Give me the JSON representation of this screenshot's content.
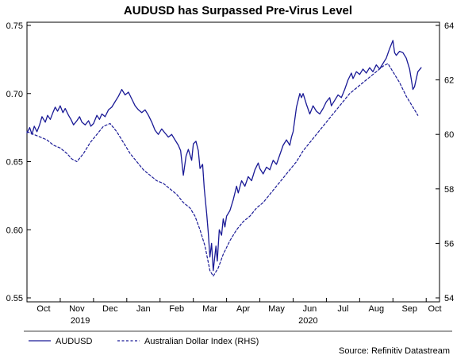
{
  "chart_data": {
    "type": "line",
    "title": "AUDUSD has Surpassed Pre-Virus Level",
    "source": "Source: Refinitiv Datastream",
    "line_color": "#1a1a96",
    "background_color": "#ffffff",
    "grid": false,
    "x_span": 12.4,
    "x_tick_labels": [
      "Oct",
      "Nov",
      "Dec",
      "Jan",
      "Feb",
      "Mar",
      "Apr",
      "May",
      "Jun",
      "Jul",
      "Aug",
      "Sep",
      "Oct"
    ],
    "year_labels": [
      {
        "text": "2019",
        "x": 1.6
      },
      {
        "text": "2020",
        "x": 8.45
      }
    ],
    "left_axis": {
      "min": 0.55,
      "max": 0.75,
      "ticks": [
        "0.75",
        "0.70",
        "0.65",
        "0.60",
        "0.55"
      ]
    },
    "right_axis": {
      "min": 54,
      "max": 64,
      "ticks": [
        "64",
        "62",
        "60",
        "58",
        "56",
        "54"
      ]
    },
    "legend": [
      {
        "label": "AUDUSD",
        "style": "solid"
      },
      {
        "label": "Australian Dollar Index (RHS)",
        "style": "dashed"
      }
    ],
    "series": [
      {
        "name": "AUDUSD",
        "axis": "left",
        "style": "solid",
        "x_unit": "months from Oct 2019",
        "points": [
          [
            0.0,
            0.671
          ],
          [
            0.08,
            0.675
          ],
          [
            0.15,
            0.67
          ],
          [
            0.22,
            0.676
          ],
          [
            0.3,
            0.672
          ],
          [
            0.38,
            0.677
          ],
          [
            0.45,
            0.683
          ],
          [
            0.55,
            0.679
          ],
          [
            0.62,
            0.684
          ],
          [
            0.7,
            0.681
          ],
          [
            0.78,
            0.686
          ],
          [
            0.85,
            0.69
          ],
          [
            0.92,
            0.687
          ],
          [
            1.0,
            0.691
          ],
          [
            1.08,
            0.686
          ],
          [
            1.15,
            0.689
          ],
          [
            1.25,
            0.684
          ],
          [
            1.32,
            0.681
          ],
          [
            1.4,
            0.677
          ],
          [
            1.5,
            0.68
          ],
          [
            1.58,
            0.683
          ],
          [
            1.65,
            0.679
          ],
          [
            1.75,
            0.677
          ],
          [
            1.85,
            0.68
          ],
          [
            1.92,
            0.676
          ],
          [
            2.0,
            0.678
          ],
          [
            2.1,
            0.684
          ],
          [
            2.18,
            0.681
          ],
          [
            2.25,
            0.685
          ],
          [
            2.35,
            0.683
          ],
          [
            2.45,
            0.688
          ],
          [
            2.55,
            0.69
          ],
          [
            2.65,
            0.694
          ],
          [
            2.75,
            0.698
          ],
          [
            2.85,
            0.703
          ],
          [
            2.95,
            0.699
          ],
          [
            3.05,
            0.701
          ],
          [
            3.15,
            0.696
          ],
          [
            3.25,
            0.691
          ],
          [
            3.35,
            0.688
          ],
          [
            3.45,
            0.686
          ],
          [
            3.55,
            0.688
          ],
          [
            3.65,
            0.684
          ],
          [
            3.75,
            0.679
          ],
          [
            3.85,
            0.673
          ],
          [
            3.95,
            0.67
          ],
          [
            4.05,
            0.674
          ],
          [
            4.15,
            0.671
          ],
          [
            4.25,
            0.668
          ],
          [
            4.35,
            0.67
          ],
          [
            4.45,
            0.666
          ],
          [
            4.55,
            0.662
          ],
          [
            4.62,
            0.658
          ],
          [
            4.7,
            0.64
          ],
          [
            4.78,
            0.654
          ],
          [
            4.85,
            0.659
          ],
          [
            4.95,
            0.651
          ],
          [
            5.0,
            0.663
          ],
          [
            5.08,
            0.665
          ],
          [
            5.15,
            0.658
          ],
          [
            5.2,
            0.645
          ],
          [
            5.28,
            0.648
          ],
          [
            5.33,
            0.63
          ],
          [
            5.4,
            0.612
          ],
          [
            5.45,
            0.598
          ],
          [
            5.5,
            0.58
          ],
          [
            5.55,
            0.59
          ],
          [
            5.6,
            0.57
          ],
          [
            5.68,
            0.588
          ],
          [
            5.72,
            0.577
          ],
          [
            5.78,
            0.6
          ],
          [
            5.85,
            0.596
          ],
          [
            5.9,
            0.608
          ],
          [
            5.95,
            0.602
          ],
          [
            6.0,
            0.61
          ],
          [
            6.1,
            0.614
          ],
          [
            6.2,
            0.622
          ],
          [
            6.3,
            0.632
          ],
          [
            6.35,
            0.627
          ],
          [
            6.45,
            0.636
          ],
          [
            6.55,
            0.632
          ],
          [
            6.65,
            0.639
          ],
          [
            6.75,
            0.636
          ],
          [
            6.85,
            0.644
          ],
          [
            6.95,
            0.649
          ],
          [
            7.0,
            0.645
          ],
          [
            7.1,
            0.641
          ],
          [
            7.2,
            0.646
          ],
          [
            7.3,
            0.644
          ],
          [
            7.4,
            0.651
          ],
          [
            7.5,
            0.648
          ],
          [
            7.6,
            0.655
          ],
          [
            7.7,
            0.662
          ],
          [
            7.8,
            0.666
          ],
          [
            7.9,
            0.662
          ],
          [
            7.95,
            0.668
          ],
          [
            8.0,
            0.672
          ],
          [
            8.1,
            0.69
          ],
          [
            8.2,
            0.7
          ],
          [
            8.25,
            0.697
          ],
          [
            8.3,
            0.7
          ],
          [
            8.4,
            0.692
          ],
          [
            8.5,
            0.685
          ],
          [
            8.6,
            0.691
          ],
          [
            8.7,
            0.687
          ],
          [
            8.8,
            0.685
          ],
          [
            8.9,
            0.689
          ],
          [
            9.0,
            0.694
          ],
          [
            9.1,
            0.697
          ],
          [
            9.15,
            0.691
          ],
          [
            9.25,
            0.695
          ],
          [
            9.35,
            0.699
          ],
          [
            9.45,
            0.697
          ],
          [
            9.55,
            0.703
          ],
          [
            9.65,
            0.71
          ],
          [
            9.75,
            0.715
          ],
          [
            9.8,
            0.711
          ],
          [
            9.9,
            0.716
          ],
          [
            10.0,
            0.714
          ],
          [
            10.1,
            0.718
          ],
          [
            10.2,
            0.715
          ],
          [
            10.3,
            0.719
          ],
          [
            10.4,
            0.716
          ],
          [
            10.5,
            0.721
          ],
          [
            10.6,
            0.718
          ],
          [
            10.7,
            0.722
          ],
          [
            10.8,
            0.726
          ],
          [
            10.9,
            0.733
          ],
          [
            11.0,
            0.739
          ],
          [
            11.05,
            0.73
          ],
          [
            11.1,
            0.728
          ],
          [
            11.2,
            0.731
          ],
          [
            11.3,
            0.73
          ],
          [
            11.4,
            0.726
          ],
          [
            11.5,
            0.718
          ],
          [
            11.6,
            0.703
          ],
          [
            11.65,
            0.705
          ],
          [
            11.75,
            0.716
          ],
          [
            11.85,
            0.719
          ]
        ]
      },
      {
        "name": "Australian Dollar Index (RHS)",
        "axis": "right",
        "style": "dashed",
        "x_unit": "months from Oct 2019",
        "points": [
          [
            0.0,
            60.1
          ],
          [
            0.2,
            60.0
          ],
          [
            0.4,
            59.9
          ],
          [
            0.6,
            59.8
          ],
          [
            0.8,
            59.6
          ],
          [
            1.0,
            59.5
          ],
          [
            1.2,
            59.3
          ],
          [
            1.35,
            59.1
          ],
          [
            1.5,
            59.0
          ],
          [
            1.7,
            59.3
          ],
          [
            1.9,
            59.7
          ],
          [
            2.1,
            60.0
          ],
          [
            2.3,
            60.3
          ],
          [
            2.5,
            60.4
          ],
          [
            2.7,
            60.1
          ],
          [
            2.9,
            59.7
          ],
          [
            3.1,
            59.3
          ],
          [
            3.3,
            59.0
          ],
          [
            3.5,
            58.7
          ],
          [
            3.7,
            58.5
          ],
          [
            3.9,
            58.3
          ],
          [
            4.1,
            58.2
          ],
          [
            4.3,
            58.0
          ],
          [
            4.5,
            57.8
          ],
          [
            4.7,
            57.5
          ],
          [
            4.9,
            57.3
          ],
          [
            5.05,
            57.0
          ],
          [
            5.2,
            56.5
          ],
          [
            5.35,
            55.9
          ],
          [
            5.5,
            55.0
          ],
          [
            5.6,
            54.8
          ],
          [
            5.75,
            55.1
          ],
          [
            5.9,
            55.6
          ],
          [
            6.1,
            56.1
          ],
          [
            6.3,
            56.5
          ],
          [
            6.5,
            56.8
          ],
          [
            6.7,
            57.0
          ],
          [
            6.9,
            57.3
          ],
          [
            7.1,
            57.5
          ],
          [
            7.3,
            57.8
          ],
          [
            7.5,
            58.1
          ],
          [
            7.7,
            58.4
          ],
          [
            7.9,
            58.7
          ],
          [
            8.1,
            59.0
          ],
          [
            8.3,
            59.4
          ],
          [
            8.5,
            59.7
          ],
          [
            8.7,
            60.0
          ],
          [
            8.9,
            60.3
          ],
          [
            9.1,
            60.6
          ],
          [
            9.3,
            60.9
          ],
          [
            9.5,
            61.2
          ],
          [
            9.7,
            61.5
          ],
          [
            9.9,
            61.7
          ],
          [
            10.1,
            61.9
          ],
          [
            10.3,
            62.1
          ],
          [
            10.5,
            62.3
          ],
          [
            10.7,
            62.5
          ],
          [
            10.85,
            62.6
          ],
          [
            11.0,
            62.3
          ],
          [
            11.2,
            61.9
          ],
          [
            11.4,
            61.4
          ],
          [
            11.6,
            61.0
          ],
          [
            11.75,
            60.7
          ]
        ]
      }
    ]
  }
}
